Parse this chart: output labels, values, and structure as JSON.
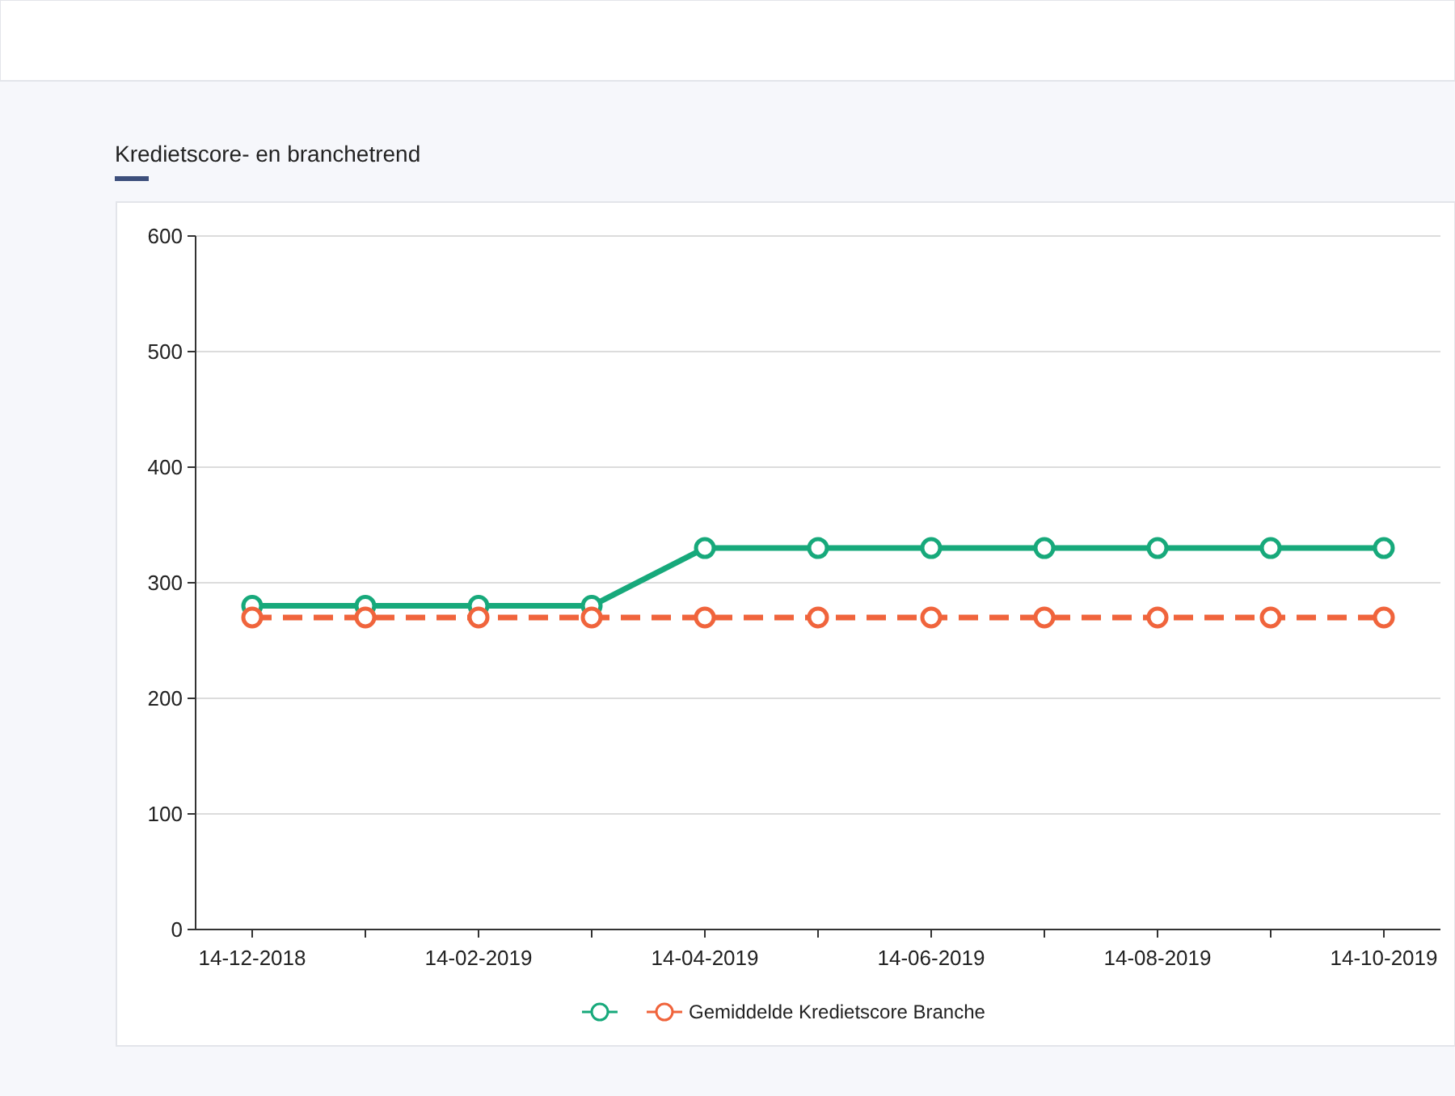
{
  "chart_data": {
    "type": "line",
    "title": "Kredietscore- en branchetrend",
    "categories": [
      "14-12-2018",
      null,
      "14-02-2019",
      null,
      "14-04-2019",
      null,
      "14-06-2019",
      null,
      "14-08-2019",
      null,
      "14-10-2019"
    ],
    "series": [
      {
        "color": "#17a97b",
        "line_style": "solid",
        "values": [
          280,
          280,
          280,
          280,
          330,
          330,
          330,
          330,
          330,
          330,
          330
        ]
      },
      {
        "name": "Gemiddelde Kredietscore Branche",
        "color": "#f0643c",
        "line_style": "dashed",
        "values": [
          270,
          270,
          270,
          270,
          270,
          270,
          270,
          270,
          270,
          270,
          270
        ]
      }
    ],
    "ylim": [
      0,
      600
    ],
    "yticks": [
      0,
      100,
      200,
      300,
      400,
      500,
      600
    ],
    "grid": "y",
    "marker": "circle",
    "legend": "bottom"
  }
}
